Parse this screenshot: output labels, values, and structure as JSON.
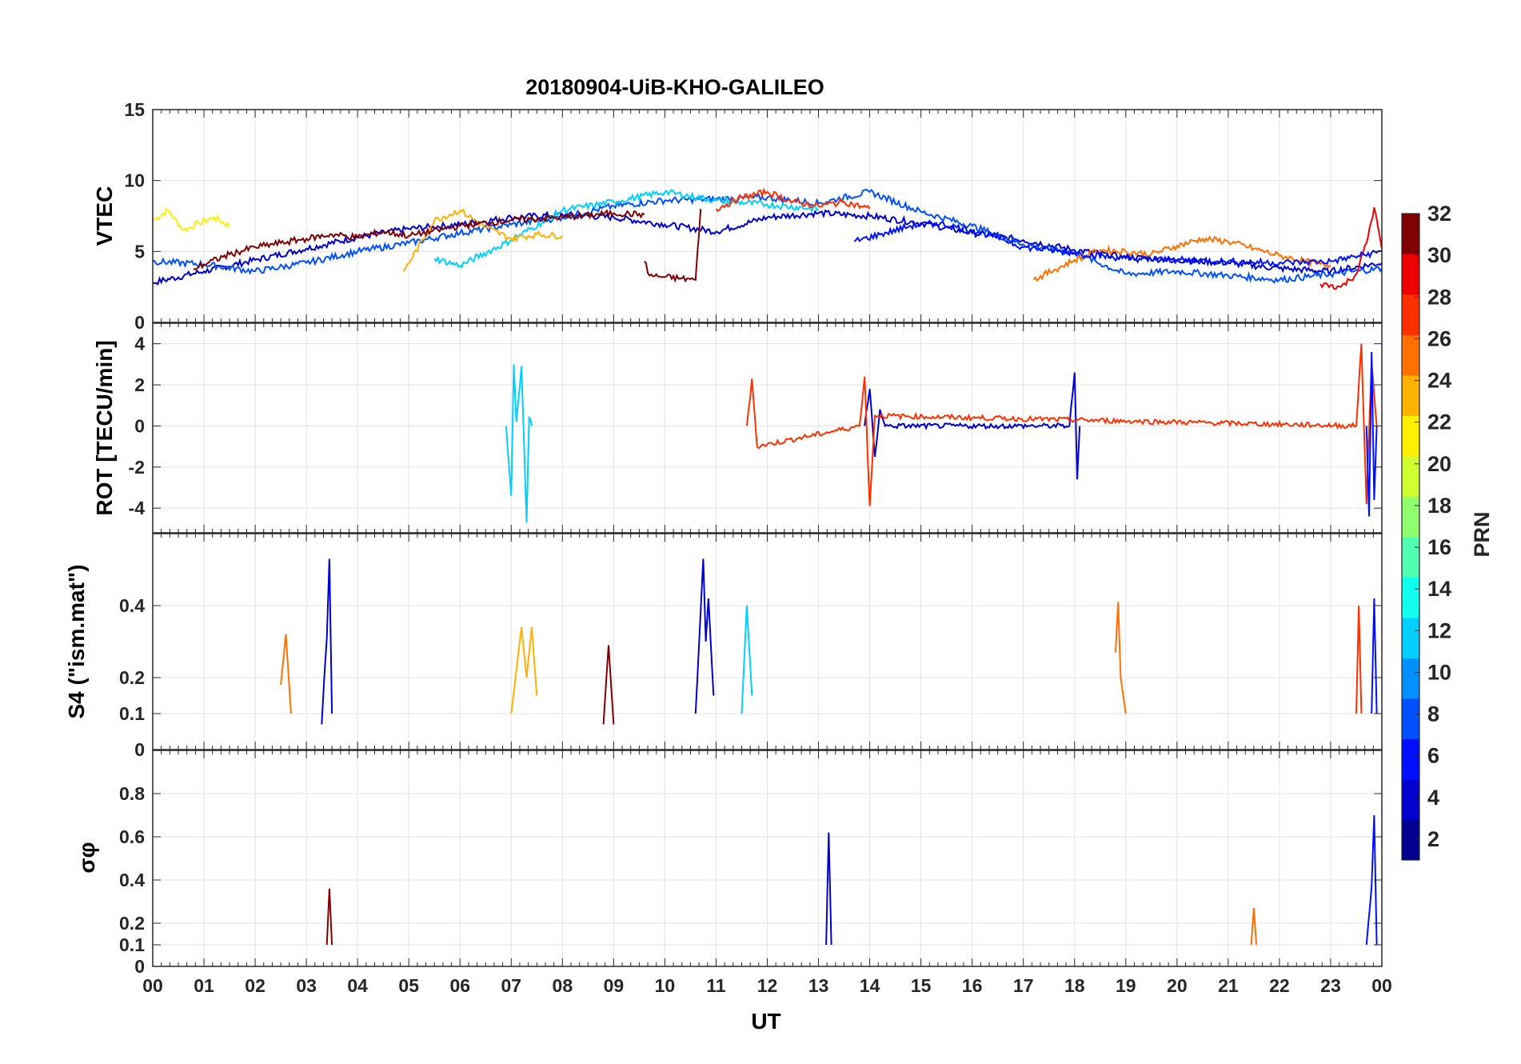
{
  "chart_data": {
    "type": "line",
    "title": "20180904-UiB-KHO-GALILEO",
    "xlabel": "UT",
    "x_ticks": [
      "00",
      "01",
      "02",
      "03",
      "04",
      "05",
      "06",
      "07",
      "08",
      "09",
      "10",
      "11",
      "12",
      "13",
      "14",
      "15",
      "16",
      "17",
      "18",
      "19",
      "20",
      "21",
      "22",
      "23",
      "00"
    ],
    "xlim_hours": [
      0,
      24
    ],
    "grid": true,
    "colorbar": {
      "label": "PRN",
      "range": [
        1,
        32
      ],
      "ticks": [
        "2",
        "4",
        "6",
        "8",
        "10",
        "12",
        "14",
        "16",
        "18",
        "20",
        "22",
        "24",
        "26",
        "28",
        "30",
        "32"
      ],
      "colormap": "jet",
      "colors": [
        "#00008f",
        "#0000cf",
        "#0010ff",
        "#0050ff",
        "#0090ff",
        "#00cfff",
        "#10ffef",
        "#50ffaf",
        "#90ff6f",
        "#cfff30",
        "#fff000",
        "#ffb000",
        "#ff7000",
        "#ff3000",
        "#ef0000",
        "#800000"
      ]
    },
    "panels": [
      {
        "id": "vtec",
        "ylabel": "VTEC",
        "ylim": [
          0,
          15
        ],
        "yticks": [
          "0",
          "5",
          "10",
          "15"
        ],
        "series": [
          {
            "prn": 21,
            "x": [
              0.0,
              0.3,
              0.6,
              0.9,
              1.2,
              1.5
            ],
            "y": [
              7.2,
              7.9,
              6.5,
              7.0,
              7.4,
              6.8
            ]
          },
          {
            "prn": 3,
            "x": [
              0.0,
              1.0,
              2.0,
              3.0,
              4.0,
              5.0,
              6.0,
              7.0,
              8.0,
              9.0,
              10.0,
              11.0,
              12.0,
              13.0,
              14.0,
              15.0,
              16.0,
              17.0,
              18.0,
              19.0,
              20.0,
              21.0,
              22.0,
              23.0,
              24.0
            ],
            "y": [
              2.8,
              3.6,
              4.4,
              5.2,
              6.0,
              6.6,
              6.9,
              7.4,
              7.6,
              7.4,
              6.9,
              6.4,
              7.4,
              7.7,
              7.5,
              7.0,
              6.3,
              5.8,
              5.1,
              4.6,
              4.4,
              4.2,
              3.8,
              3.6,
              4.2
            ]
          },
          {
            "prn": 8,
            "x": [
              0.0,
              1.0,
              2.0,
              3.0,
              4.0,
              5.0,
              6.0,
              7.0,
              8.0,
              9.0,
              10.0,
              11.0,
              12.0,
              13.0,
              14.0,
              15.0,
              16.0,
              17.0,
              18.0,
              19.0,
              20.0,
              21.0,
              22.0,
              23.0,
              24.0
            ],
            "y": [
              4.3,
              4.1,
              3.6,
              4.2,
              5.0,
              5.6,
              6.3,
              6.9,
              7.4,
              8.2,
              8.6,
              8.7,
              8.8,
              8.4,
              9.2,
              7.8,
              6.8,
              5.5,
              4.9,
              3.4,
              3.6,
              3.3,
              3.0,
              3.4,
              3.8
            ]
          },
          {
            "prn": 12,
            "x": [
              5.5,
              6.0,
              7.0,
              8.0,
              9.0,
              10.0,
              11.0,
              12.0,
              13.0
            ],
            "y": [
              4.5,
              4.0,
              5.8,
              7.9,
              8.5,
              9.2,
              8.6,
              8.3,
              8.0
            ]
          },
          {
            "prn": 24,
            "x": [
              4.9,
              5.5,
              6.0,
              6.5,
              7.0,
              7.5,
              8.0
            ],
            "y": [
              3.6,
              7.2,
              7.9,
              6.7,
              5.9,
              6.2,
              6.1
            ]
          },
          {
            "prn": 26,
            "x": [
              17.2,
              17.6,
              18.0,
              18.5,
              19.0,
              19.5,
              20.0,
              20.5,
              21.0,
              21.5,
              22.0,
              22.5,
              23.0
            ],
            "y": [
              3.0,
              3.7,
              4.4,
              5.1,
              5.0,
              4.8,
              5.4,
              5.9,
              5.7,
              5.2,
              4.7,
              4.3,
              4.0
            ]
          },
          {
            "prn": 28,
            "x": [
              11.0,
              11.5,
              12.0,
              12.5,
              13.0,
              13.5,
              14.0
            ],
            "y": [
              8.0,
              8.8,
              9.2,
              8.5,
              8.2,
              8.5,
              8.0
            ]
          },
          {
            "prn": 31,
            "x": [
              0.8,
              1.5,
              2.0,
              2.5,
              3.0,
              3.5,
              4.0,
              4.5,
              5.0,
              6.0,
              7.0,
              8.0,
              9.0,
              9.6
            ],
            "y": [
              3.8,
              4.8,
              5.3,
              5.6,
              5.9,
              6.2,
              6.0,
              6.4,
              6.1,
              6.8,
              7.2,
              7.4,
              7.7,
              7.6
            ]
          },
          {
            "prn": 31,
            "x": [
              9.6,
              9.7,
              10.0,
              10.3,
              10.6,
              10.7
            ],
            "y": [
              4.3,
              3.3,
              3.2,
              3.1,
              3.0,
              8.0
            ]
          },
          {
            "prn": 30,
            "x": [
              22.8,
              23.2,
              23.5,
              23.7,
              23.85,
              24.0
            ],
            "y": [
              2.7,
              2.5,
              3.4,
              5.6,
              8.1,
              5.2
            ]
          },
          {
            "prn": 5,
            "x": [
              13.7,
              14.2,
              14.8,
              15.3,
              16.0,
              16.5,
              17.0,
              17.5,
              18.0,
              19.0,
              20.0,
              21.0,
              22.0,
              23.0,
              24.0
            ],
            "y": [
              5.7,
              6.2,
              6.8,
              7.0,
              6.5,
              6.0,
              5.3,
              5.1,
              4.9,
              4.5,
              4.4,
              4.3,
              4.2,
              4.3,
              5.0
            ]
          }
        ]
      },
      {
        "id": "rot",
        "ylabel": "ROT [TECU/min]",
        "ylim": [
          -5.2,
          5
        ],
        "yticks": [
          "-4",
          "-2",
          "0",
          "2",
          "4"
        ],
        "series": [
          {
            "prn": 12,
            "x": [
              6.9,
              7.0,
              7.05,
              7.1,
              7.2,
              7.3,
              7.35,
              7.4
            ],
            "y": [
              0.0,
              -3.4,
              3.0,
              0.2,
              2.9,
              -4.7,
              0.4,
              0.0
            ]
          },
          {
            "prn": 3,
            "x": [
              13.9,
              14.0,
              14.1,
              14.2,
              14.3,
              17.9,
              18.0,
              18.05,
              18.1
            ],
            "y": [
              0.0,
              1.8,
              -1.5,
              0.8,
              0.0,
              0.0,
              2.6,
              -2.6,
              0.0
            ]
          },
          {
            "prn": 27,
            "x": [
              11.6,
              11.7,
              11.8,
              13.8,
              13.9,
              14.0,
              14.1,
              23.5,
              23.6,
              23.7,
              23.8,
              23.9
            ],
            "y": [
              0.0,
              2.3,
              -1.0,
              0.0,
              2.4,
              -3.9,
              0.5,
              0.0,
              4.0,
              -3.8,
              3.1,
              0.0
            ]
          },
          {
            "prn": 5,
            "x": [
              23.7,
              23.75,
              23.8,
              23.85,
              23.9
            ],
            "y": [
              0.0,
              -4.4,
              3.6,
              -3.6,
              0.0
            ]
          }
        ]
      },
      {
        "id": "s4",
        "ylabel": "S4 (\"ism.mat\")",
        "ylim": [
          0,
          0.6
        ],
        "yticks": [
          "0",
          "0.1",
          "0.2",
          "0.4"
        ],
        "series": [
          {
            "prn": 3,
            "x": [
              3.3,
              3.35,
              3.4,
              3.45,
              3.5
            ],
            "y": [
              0.07,
              0.2,
              0.31,
              0.53,
              0.1
            ]
          },
          {
            "prn": 3,
            "x": [
              10.6,
              10.75,
              10.8,
              10.85,
              10.95
            ],
            "y": [
              0.1,
              0.53,
              0.3,
              0.42,
              0.15
            ]
          },
          {
            "prn": 26,
            "x": [
              2.5,
              2.6,
              2.7
            ],
            "y": [
              0.18,
              0.32,
              0.1
            ]
          },
          {
            "prn": 24,
            "x": [
              7.0,
              7.2,
              7.3,
              7.4,
              7.5
            ],
            "y": [
              0.1,
              0.34,
              0.2,
              0.34,
              0.15
            ]
          },
          {
            "prn": 12,
            "x": [
              11.5,
              11.6,
              11.7
            ],
            "y": [
              0.1,
              0.4,
              0.15
            ]
          },
          {
            "prn": 26,
            "x": [
              18.8,
              18.85,
              18.9,
              19.0
            ],
            "y": [
              0.27,
              0.41,
              0.2,
              0.1
            ]
          },
          {
            "prn": 28,
            "x": [
              23.5,
              23.55,
              23.6
            ],
            "y": [
              0.1,
              0.4,
              0.1
            ]
          },
          {
            "prn": 5,
            "x": [
              23.8,
              23.85,
              23.9
            ],
            "y": [
              0.1,
              0.42,
              0.1
            ]
          },
          {
            "prn": 31,
            "x": [
              8.8,
              8.9,
              9.0
            ],
            "y": [
              0.07,
              0.29,
              0.07
            ]
          }
        ]
      },
      {
        "id": "sigma_phi",
        "ylabel": "σφ",
        "ylim": [
          0,
          1
        ],
        "yticks": [
          "0",
          "0.1",
          "0.2",
          "0.4",
          "0.6",
          "0.8"
        ],
        "series": [
          {
            "prn": 3,
            "x": [
              13.15,
              13.2,
              13.25
            ],
            "y": [
              0.1,
              0.62,
              0.1
            ]
          },
          {
            "prn": 31,
            "x": [
              3.4,
              3.45,
              3.5
            ],
            "y": [
              0.1,
              0.36,
              0.1
            ]
          },
          {
            "prn": 5,
            "x": [
              23.7,
              23.8,
              23.85,
              23.9
            ],
            "y": [
              0.1,
              0.37,
              0.7,
              0.1
            ]
          },
          {
            "prn": 26,
            "x": [
              21.45,
              21.5,
              21.55
            ],
            "y": [
              0.1,
              0.27,
              0.1
            ]
          }
        ]
      }
    ]
  }
}
